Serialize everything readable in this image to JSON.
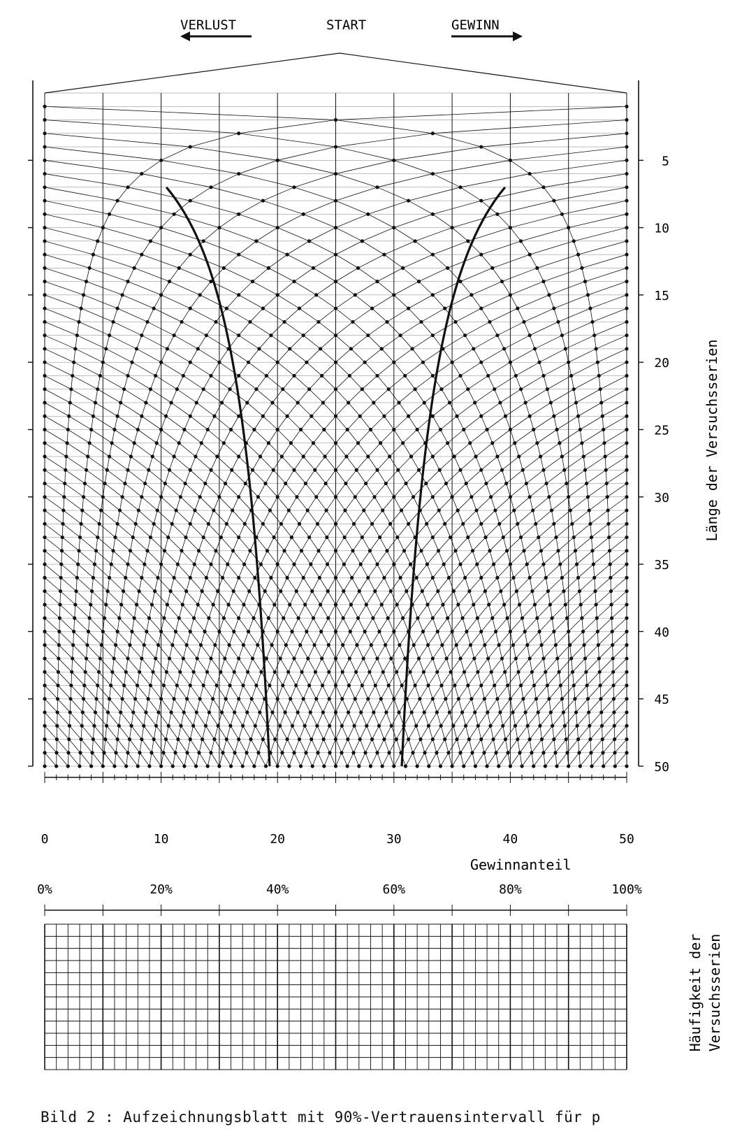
{
  "header": {
    "loss_label": "VERLUST",
    "start_label": "START",
    "win_label": "GEWINN"
  },
  "grid": {
    "series_length": 50
  },
  "y_axis": {
    "label": "Länge der Versuchsserien",
    "ticks": [
      "5",
      "10",
      "15",
      "20",
      "25",
      "30",
      "35",
      "40",
      "45",
      "50"
    ]
  },
  "x_axis": {
    "label": "Gewinnanteil",
    "ticks": [
      "0",
      "10",
      "20",
      "30",
      "40",
      "50"
    ]
  },
  "percent_axis": {
    "ticks": [
      "0%",
      "20%",
      "40%",
      "60%",
      "80%",
      "100%"
    ]
  },
  "histogram": {
    "label_line1": "Häufigkeit der",
    "label_line2": "Versuchsserien"
  },
  "caption": "Bild 2 : Aufzeichnungsblatt mit 90%-Vertrauensintervall für p"
}
